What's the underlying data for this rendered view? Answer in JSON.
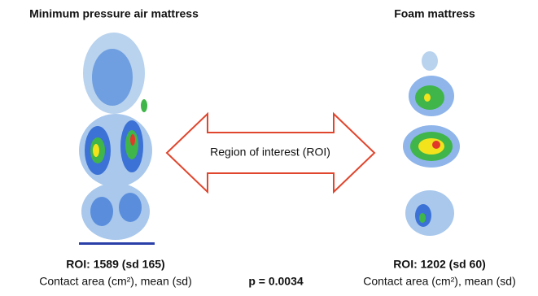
{
  "left": {
    "title": "Minimum pressure air mattress",
    "roi": "ROI: 1589 (sd 165)",
    "caption": "Contact area (cm²), mean (sd)"
  },
  "right": {
    "title": "Foam mattress",
    "roi": "ROI: 1202 (sd 60)",
    "caption": "Contact area (cm²), mean (sd)"
  },
  "arrow_label": "Region of interest (ROI)",
  "p_value": "p = 0.0034"
}
